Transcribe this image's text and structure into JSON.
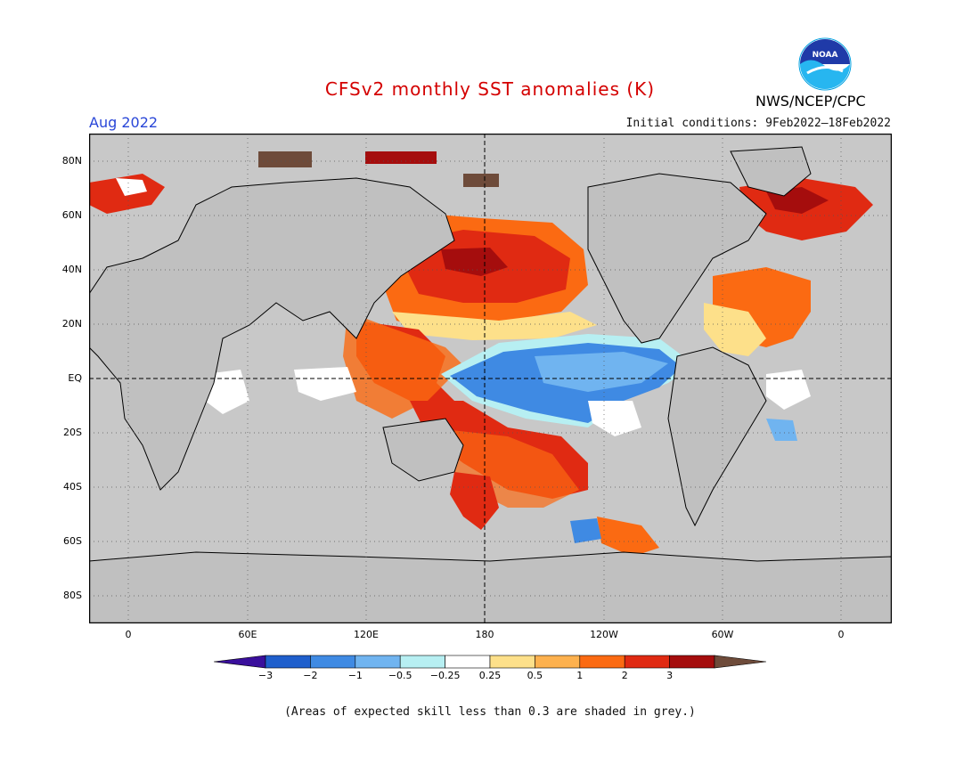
{
  "title": "CFSv2 monthly SST anomalies (K)",
  "valid_month": "Aug 2022",
  "initial_conditions": "Initial conditions: 9Feb2022–18Feb2022",
  "agency": "NWS/NCEP/CPC",
  "logo_text": "NOAA",
  "latitude_ticks": [
    "80N",
    "60N",
    "40N",
    "20N",
    "EQ",
    "20S",
    "40S",
    "60S",
    "80S"
  ],
  "longitude_ticks": [
    "0",
    "60E",
    "120E",
    "180",
    "120W",
    "60W",
    "0"
  ],
  "colorbar": {
    "labels": [
      "−3",
      "−2",
      "−1",
      "−0.5",
      "−0.25",
      "0.25",
      "0.5",
      "1",
      "2",
      "3"
    ],
    "colors": [
      "#3a0f9c",
      "#1f5fcc",
      "#3f8ae3",
      "#70b4f0",
      "#b7eff2",
      "#ffffff",
      "#fde08a",
      "#fdb14e",
      "#fb6a12",
      "#e02a12",
      "#a50d0d",
      "#6e4b3a"
    ]
  },
  "land_color": "#c0c0c0",
  "ocean_mask_color": "#c8c8c8",
  "footnote": "(Areas of expected skill less than 0.3 are shaded in grey.)"
}
